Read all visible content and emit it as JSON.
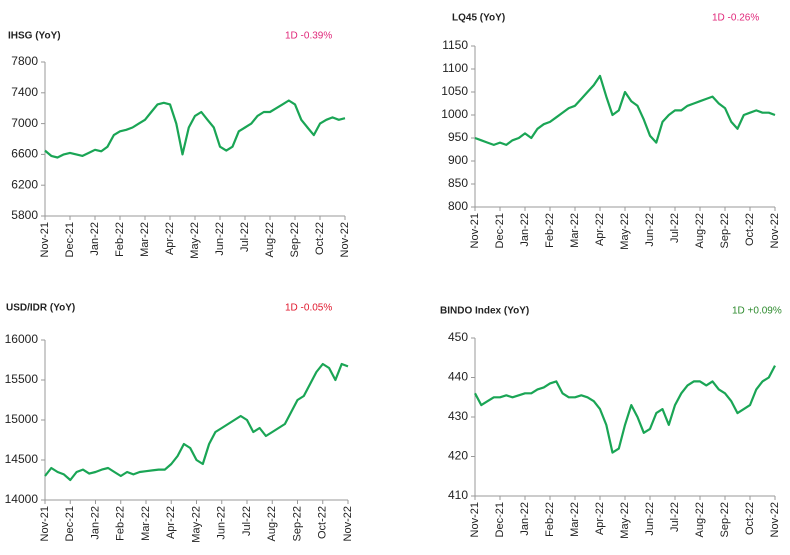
{
  "chart_data": [
    {
      "type": "line",
      "title": "IHSG (YoY)",
      "annotation": "1D -0.39%",
      "annotation_color": "#e0287a",
      "color": "#1aa555",
      "categories": [
        "Nov-21",
        null,
        null,
        null,
        "Dec-21",
        null,
        null,
        null,
        "Jan-22",
        null,
        null,
        null,
        "Feb-22",
        null,
        null,
        null,
        "Mar-22",
        null,
        null,
        null,
        "Apr-22",
        null,
        null,
        null,
        "May-22",
        null,
        null,
        null,
        "Jun-22",
        null,
        null,
        null,
        "Jul-22",
        null,
        null,
        null,
        "Aug-22",
        null,
        null,
        null,
        "Sep-22",
        null,
        null,
        null,
        "Oct-22",
        null,
        null,
        null,
        "Nov-22"
      ],
      "values": [
        6650,
        6580,
        6560,
        6600,
        6620,
        6600,
        6580,
        6620,
        6660,
        6640,
        6700,
        6850,
        6900,
        6920,
        6950,
        7000,
        7050,
        7150,
        7250,
        7270,
        7250,
        7000,
        6600,
        6950,
        7100,
        7150,
        7050,
        6950,
        6700,
        6650,
        6700,
        6900,
        6950,
        7000,
        7100,
        7150,
        7150,
        7200,
        7250,
        7300,
        7250,
        7050,
        6950,
        6850,
        7000,
        7050,
        7080,
        7050,
        7070
      ],
      "ylim": [
        5800,
        7800
      ],
      "yticks": [
        5800,
        6200,
        6600,
        7000,
        7400,
        7800
      ]
    },
    {
      "type": "line",
      "title": "LQ45 (YoY)",
      "annotation": "1D -0.26%",
      "annotation_color": "#e0287a",
      "color": "#1aa555",
      "categories": [
        "Nov-21",
        null,
        null,
        null,
        "Dec-21",
        null,
        null,
        null,
        "Jan-22",
        null,
        null,
        null,
        "Feb-22",
        null,
        null,
        null,
        "Mar-22",
        null,
        null,
        null,
        "Apr-22",
        null,
        null,
        null,
        "May-22",
        null,
        null,
        null,
        "Jun-22",
        null,
        null,
        null,
        "Jul-22",
        null,
        null,
        null,
        "Aug-22",
        null,
        null,
        null,
        "Sep-22",
        null,
        null,
        null,
        "Oct-22",
        null,
        null,
        null,
        "Nov-22"
      ],
      "values": [
        950,
        945,
        940,
        935,
        940,
        935,
        945,
        950,
        960,
        950,
        970,
        980,
        985,
        995,
        1005,
        1015,
        1020,
        1035,
        1050,
        1065,
        1085,
        1040,
        1000,
        1010,
        1050,
        1030,
        1020,
        990,
        955,
        940,
        985,
        1000,
        1010,
        1010,
        1020,
        1025,
        1030,
        1035,
        1040,
        1025,
        1015,
        985,
        970,
        1000,
        1005,
        1010,
        1005,
        1005,
        1000
      ],
      "ylim": [
        800,
        1150
      ],
      "yticks": [
        800,
        850,
        900,
        950,
        1000,
        1050,
        1100,
        1150
      ]
    },
    {
      "type": "line",
      "title": "USD/IDR  (YoY)",
      "annotation": "1D -0.05%",
      "annotation_color": "#e0182d",
      "color": "#1aa555",
      "categories": [
        "Nov-21",
        null,
        null,
        null,
        "Dec-21",
        null,
        null,
        null,
        "Jan-22",
        null,
        null,
        null,
        "Feb-22",
        null,
        null,
        null,
        "Mar-22",
        null,
        null,
        null,
        "Apr-22",
        null,
        null,
        null,
        "May-22",
        null,
        null,
        null,
        "Jun-22",
        null,
        null,
        null,
        "Jul-22",
        null,
        null,
        null,
        "Aug-22",
        null,
        null,
        null,
        "Sep-22",
        null,
        null,
        null,
        "Oct-22",
        null,
        null,
        null,
        "Nov-22"
      ],
      "values": [
        14300,
        14400,
        14350,
        14320,
        14250,
        14350,
        14380,
        14330,
        14350,
        14380,
        14400,
        14350,
        14300,
        14350,
        14320,
        14350,
        14360,
        14370,
        14380,
        14380,
        14450,
        14550,
        14700,
        14650,
        14500,
        14450,
        14700,
        14850,
        14900,
        14950,
        15000,
        15050,
        15000,
        14850,
        14900,
        14800,
        14850,
        14900,
        14950,
        15100,
        15250,
        15300,
        15450,
        15600,
        15700,
        15650,
        15500,
        15700,
        15670
      ],
      "ylim": [
        14000,
        16000
      ],
      "yticks": [
        14000,
        14500,
        15000,
        15500,
        16000
      ]
    },
    {
      "type": "line",
      "title": "BINDO Index (YoY)",
      "annotation": "1D +0.09%",
      "annotation_color": "#2e8b2e",
      "color": "#1aa555",
      "categories": [
        "Nov-21",
        null,
        null,
        null,
        "Dec-21",
        null,
        null,
        null,
        "Jan-22",
        null,
        null,
        null,
        "Feb-22",
        null,
        null,
        null,
        "Mar-22",
        null,
        null,
        null,
        "Apr-22",
        null,
        null,
        null,
        "May-22",
        null,
        null,
        null,
        "Jun-22",
        null,
        null,
        null,
        "Jul-22",
        null,
        null,
        null,
        "Aug-22",
        null,
        null,
        null,
        "Sep-22",
        null,
        null,
        null,
        "Oct-22",
        null,
        null,
        null,
        "Nov-22"
      ],
      "values": [
        436,
        433,
        434,
        435,
        435,
        435.5,
        435,
        435.5,
        436,
        436,
        437,
        437.5,
        438.5,
        439,
        436,
        435,
        435,
        435.5,
        435,
        434,
        432,
        428,
        421,
        422,
        428,
        433,
        430,
        426,
        427,
        431,
        432,
        428,
        433,
        436,
        438,
        439,
        439,
        438,
        439,
        437,
        436,
        434,
        431,
        432,
        433,
        437,
        439,
        440,
        443
      ],
      "ylim": [
        410,
        450
      ],
      "yticks": [
        410,
        420,
        430,
        440,
        450
      ]
    }
  ]
}
